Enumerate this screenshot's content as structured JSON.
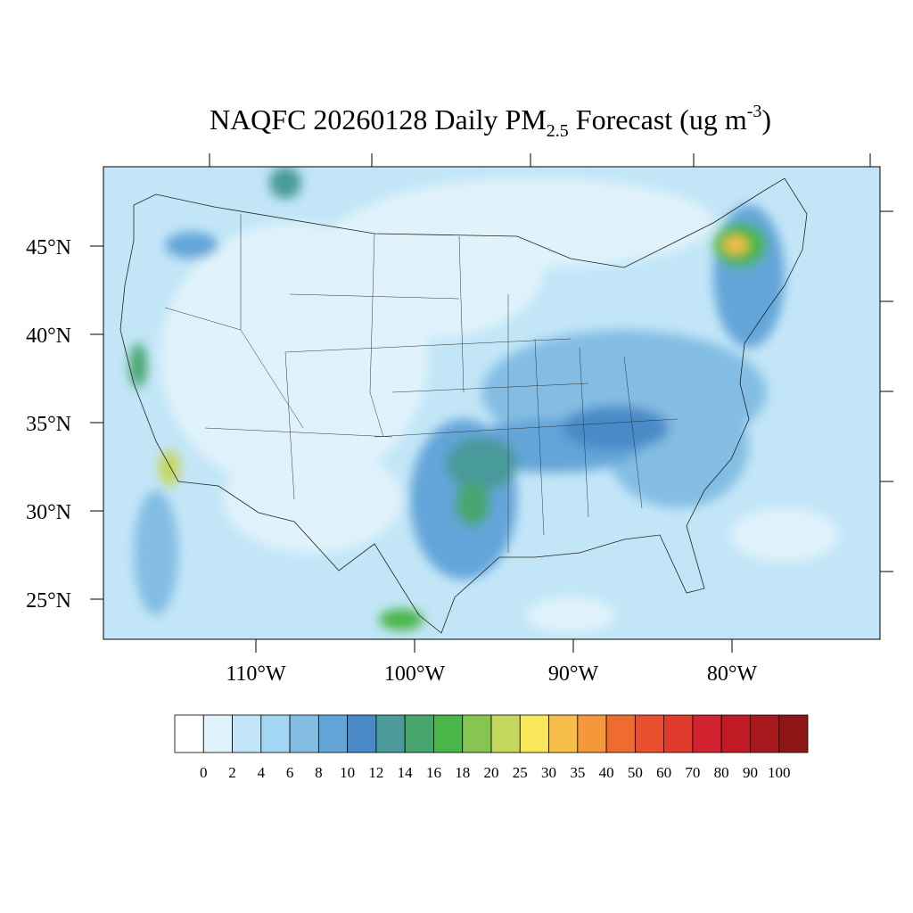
{
  "map": {
    "title": {
      "main": "NAQFC 20260128 Daily PM",
      "sub": "2.5",
      "mid": " Forecast (ug m",
      "sup": "-3",
      "end": ")"
    },
    "lat_ticks": [
      {
        "value": 45,
        "label": "45°N"
      },
      {
        "value": 40,
        "label": "40°N"
      },
      {
        "value": 35,
        "label": "35°N"
      },
      {
        "value": 30,
        "label": "30°N"
      },
      {
        "value": 25,
        "label": "25°N"
      }
    ],
    "lon_ticks": [
      {
        "value": -110,
        "label": "110°W"
      },
      {
        "value": -100,
        "label": "100°W"
      },
      {
        "value": -90,
        "label": "90°W"
      },
      {
        "value": -80,
        "label": "80°W"
      }
    ],
    "colorbar": {
      "levels": [
        0,
        2,
        4,
        6,
        8,
        10,
        12,
        14,
        16,
        18,
        20,
        25,
        30,
        35,
        40,
        50,
        60,
        70,
        80,
        90,
        100
      ],
      "colors": [
        "#ffffff",
        "#e0f3fb",
        "#c2e6f7",
        "#a1d7f2",
        "#83bde4",
        "#64a5d9",
        "#4a8ac8",
        "#4a9a9a",
        "#47a66e",
        "#4ab548",
        "#87c553",
        "#c4d65c",
        "#f8e75a",
        "#f8be4a",
        "#f5983c",
        "#ef6c30",
        "#e8502d",
        "#df3a2b",
        "#d32230",
        "#c01b25",
        "#a8191d",
        "#8f1616"
      ]
    }
  }
}
